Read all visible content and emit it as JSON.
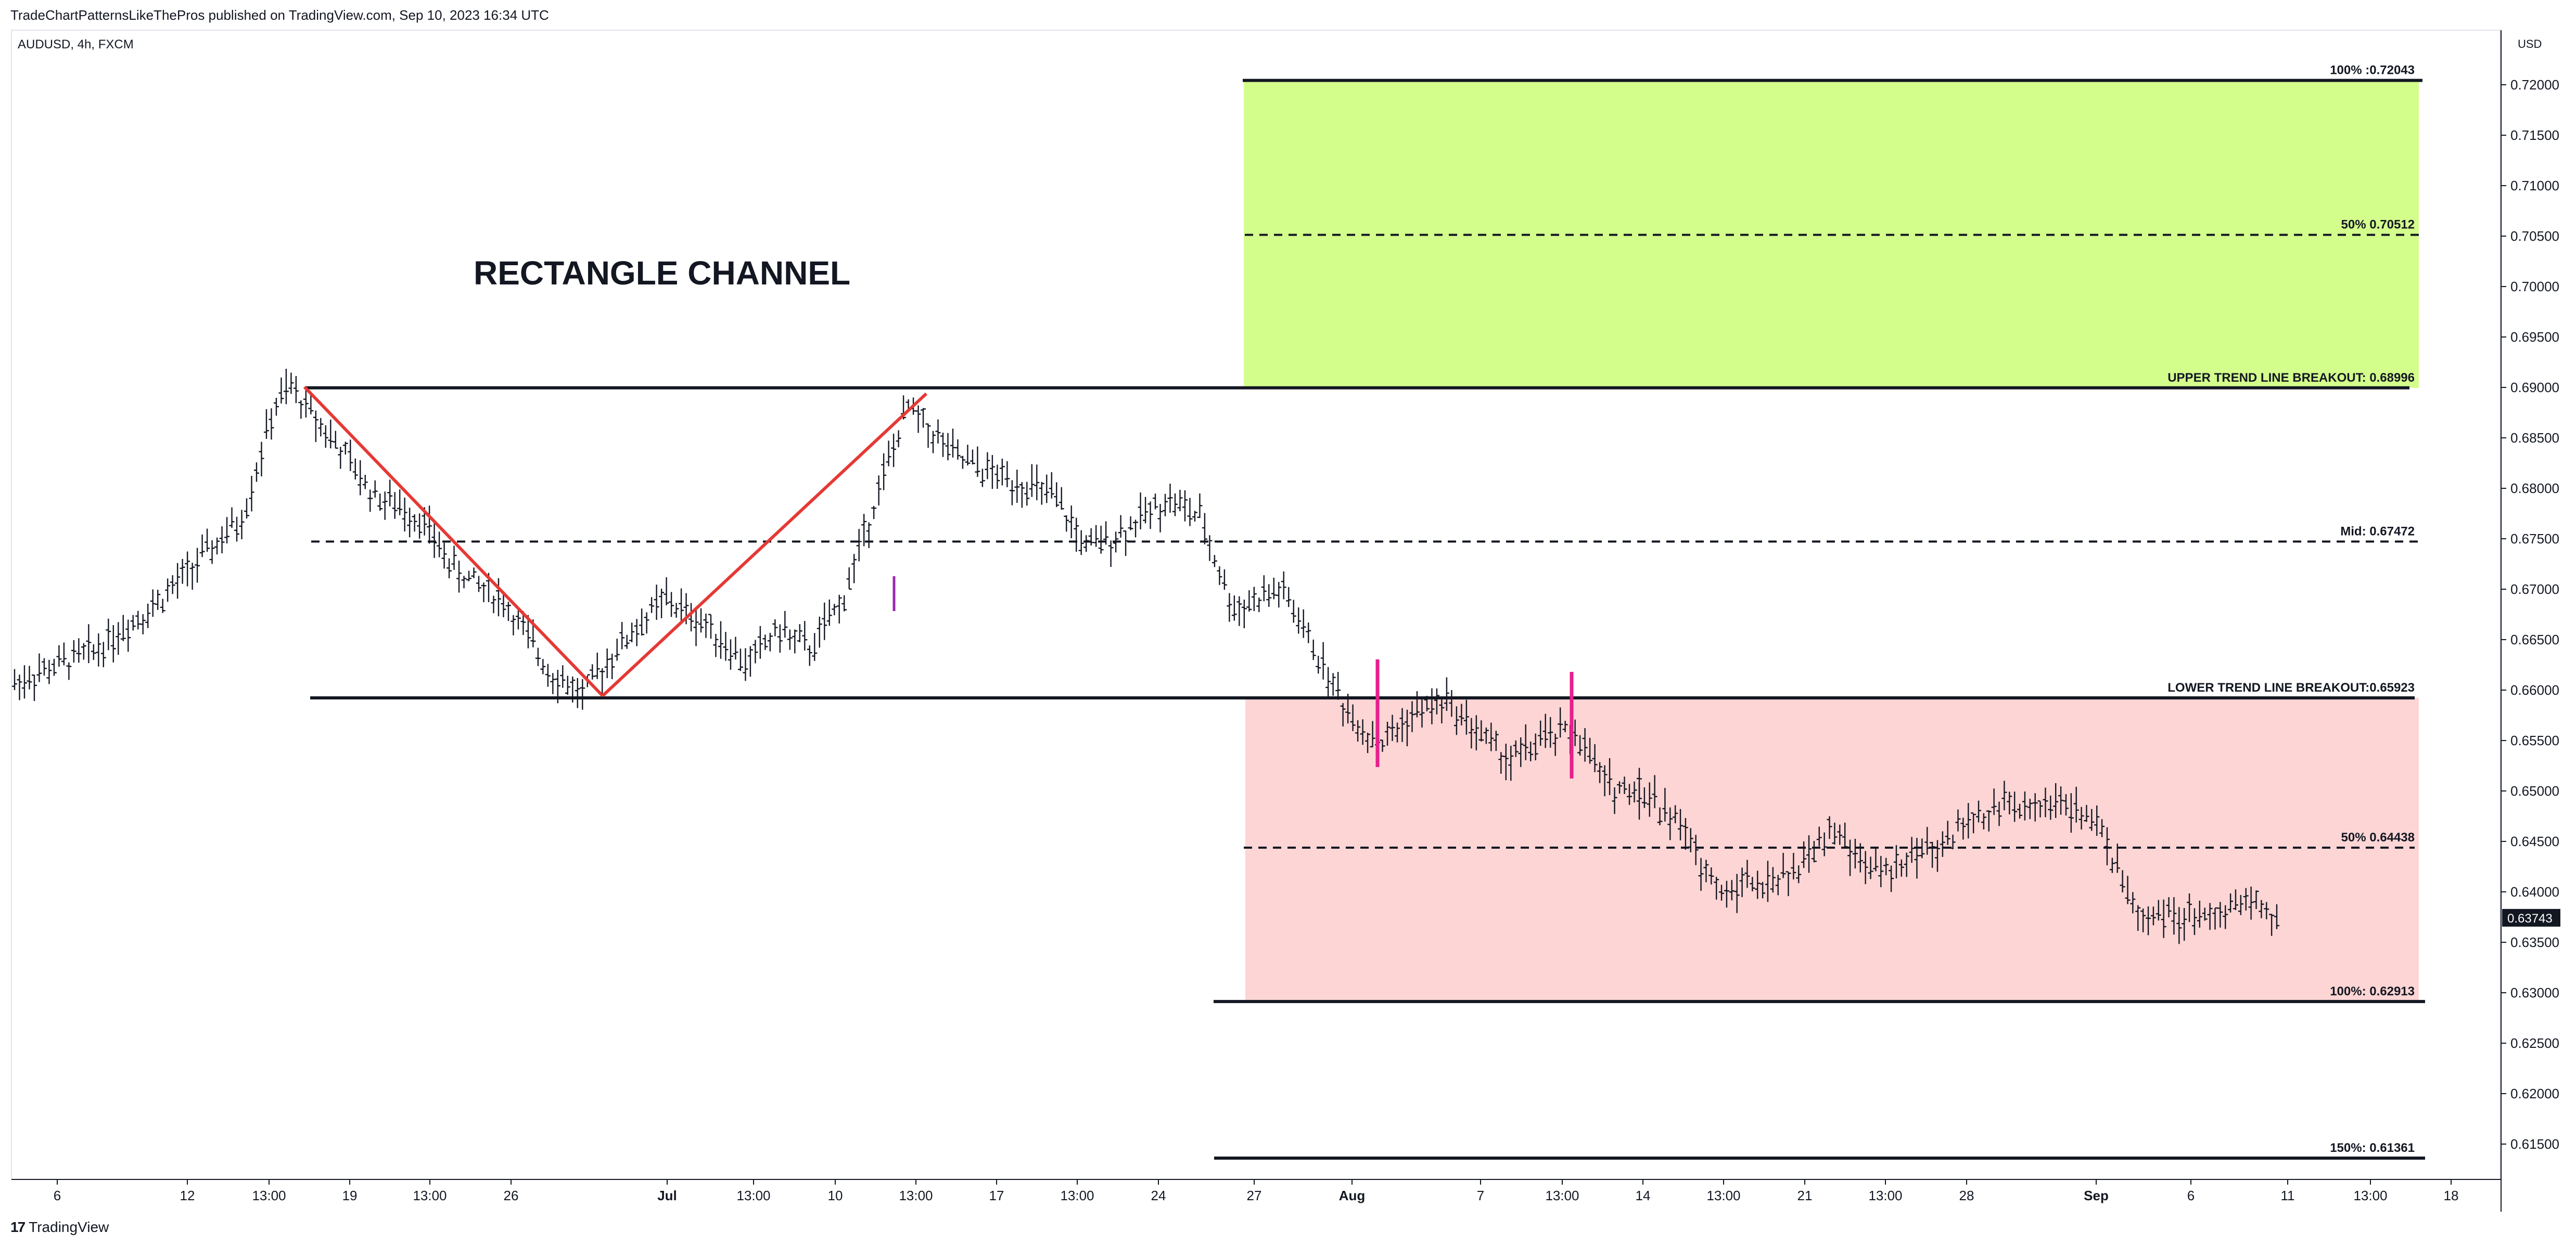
{
  "header": {
    "published": "TradeChartPatternsLikeThePros published on TradingView.com, Sep 10, 2023 16:34 UTC"
  },
  "symbol": {
    "label": "AUDUSD, 4h, FXCM"
  },
  "axis": {
    "currency": "USD"
  },
  "footer": {
    "brand": "TradingView",
    "logo": "17"
  },
  "colors": {
    "green_zone": "#d4fe8c",
    "red_zone": "#fcd5d4",
    "red_line": "#e53935",
    "magenta": "#e91e8c",
    "purple": "#9c27b0",
    "text": "#131722"
  },
  "chart_data": {
    "type": "bar",
    "title": "RECTANGLE CHANNEL",
    "ylim": [
      0.61,
      0.7225
    ],
    "y_ticks": [
      0.72,
      0.715,
      0.71,
      0.705,
      0.7,
      0.695,
      0.69,
      0.685,
      0.68,
      0.675,
      0.67,
      0.665,
      0.66,
      0.655,
      0.65,
      0.645,
      0.64,
      0.635,
      0.63,
      0.625,
      0.62,
      0.615
    ],
    "x_ticks": [
      "6",
      "12",
      "13:00",
      "19",
      "13:00",
      "26",
      "Jul",
      "13:00",
      "10",
      "13:00",
      "17",
      "13:00",
      "24",
      "27",
      "Aug",
      "7",
      "13:00",
      "14",
      "13:00",
      "21",
      "13:00",
      "28",
      "Sep",
      "6",
      "11",
      "13:00",
      "18"
    ],
    "last_price": "0.63743",
    "levels": [
      {
        "label": "100% :0.72043",
        "value": 0.72043
      },
      {
        "label": "50% 0.70512",
        "value": 0.70512
      },
      {
        "label": "UPPER TREND LINE BREAKOUT: 0.68996",
        "value": 0.68996
      },
      {
        "label": "Mid: 0.67472",
        "value": 0.67472
      },
      {
        "label": "LOWER TREND LINE BREAKOUT:0.65923",
        "value": 0.65923
      },
      {
        "label": "50% 0.64438",
        "value": 0.64438
      },
      {
        "label": "100%: 0.62913",
        "value": 0.62913
      },
      {
        "label": "150%: 0.61361",
        "value": 0.61361
      }
    ],
    "price_path": [
      [
        0.0,
        0.6607
      ],
      [
        0.05,
        0.664
      ],
      [
        0.09,
        0.669
      ],
      [
        0.14,
        0.677
      ],
      [
        0.16,
        0.688
      ],
      [
        0.17,
        0.69
      ],
      [
        0.2,
        0.684
      ],
      [
        0.22,
        0.6795
      ],
      [
        0.25,
        0.677
      ],
      [
        0.27,
        0.672
      ],
      [
        0.3,
        0.669
      ],
      [
        0.33,
        0.6618
      ],
      [
        0.35,
        0.6595
      ],
      [
        0.37,
        0.664
      ],
      [
        0.4,
        0.669
      ],
      [
        0.43,
        0.666
      ],
      [
        0.45,
        0.6625
      ],
      [
        0.47,
        0.666
      ],
      [
        0.49,
        0.664
      ],
      [
        0.51,
        0.669
      ],
      [
        0.53,
        0.679
      ],
      [
        0.55,
        0.688
      ],
      [
        0.58,
        0.683
      ],
      [
        0.6,
        0.6815
      ],
      [
        0.62,
        0.6805
      ],
      [
        0.64,
        0.679
      ],
      [
        0.66,
        0.674
      ],
      [
        0.68,
        0.6755
      ],
      [
        0.71,
        0.679
      ],
      [
        0.73,
        0.677
      ],
      [
        0.75,
        0.668
      ],
      [
        0.78,
        0.67
      ],
      [
        0.8,
        0.664
      ],
      [
        0.82,
        0.658
      ],
      [
        0.84,
        0.6545
      ],
      [
        0.86,
        0.6575
      ],
      [
        0.88,
        0.659
      ],
      [
        0.9,
        0.656
      ],
      [
        0.92,
        0.653
      ],
      [
        0.94,
        0.655
      ],
      [
        0.96,
        0.656
      ],
      [
        0.98,
        0.6505
      ],
      [
        1.0,
        0.65
      ]
    ],
    "price_path_2": [
      [
        0.0,
        0.65
      ],
      [
        0.06,
        0.647
      ],
      [
        0.12,
        0.64
      ],
      [
        0.18,
        0.641
      ],
      [
        0.24,
        0.642
      ],
      [
        0.3,
        0.646
      ],
      [
        0.36,
        0.642
      ],
      [
        0.42,
        0.643
      ],
      [
        0.48,
        0.645
      ],
      [
        0.54,
        0.648
      ],
      [
        0.6,
        0.649
      ],
      [
        0.66,
        0.649
      ],
      [
        0.72,
        0.646
      ],
      [
        0.78,
        0.638
      ],
      [
        0.84,
        0.6375
      ],
      [
        0.9,
        0.638
      ],
      [
        0.96,
        0.639
      ],
      [
        1.0,
        0.6374
      ]
    ]
  }
}
